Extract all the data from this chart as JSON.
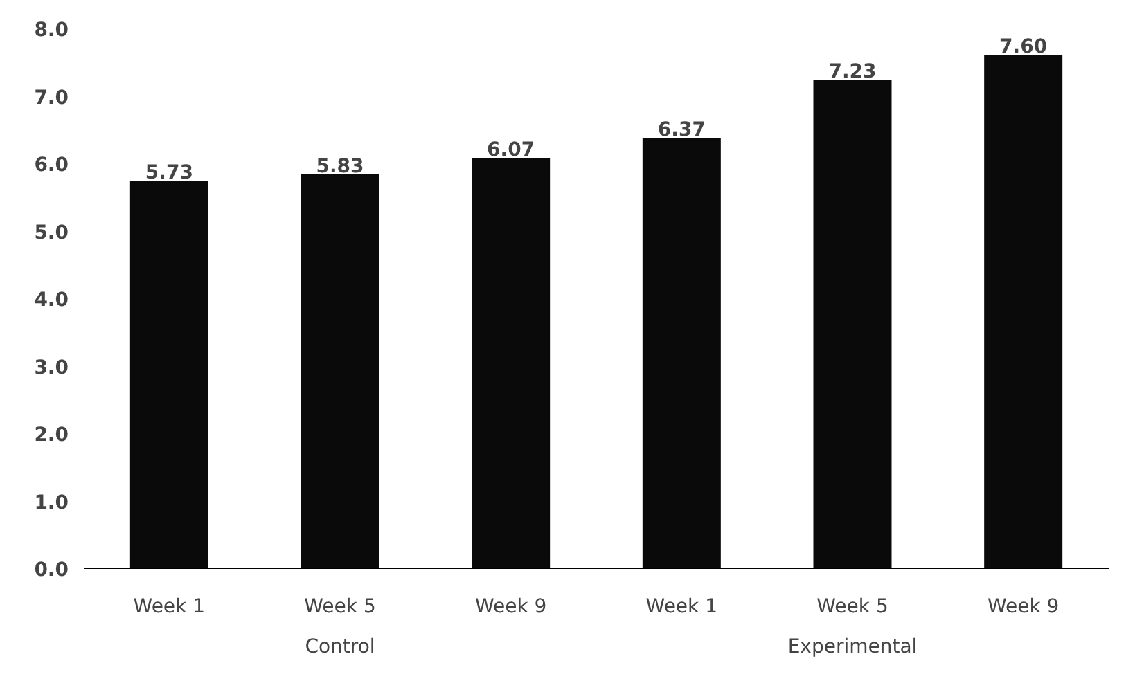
{
  "chart_data": {
    "type": "bar",
    "categories": [
      "Week 1",
      "Week 5",
      "Week 9",
      "Week 1",
      "Week 5",
      "Week 9"
    ],
    "values": [
      5.73,
      5.83,
      6.07,
      6.37,
      7.23,
      7.6
    ],
    "value_labels": [
      "5.73",
      "5.83",
      "6.07",
      "6.37",
      "7.23",
      "7.60"
    ],
    "color": "#0a0a0a",
    "ylim": [
      0,
      8
    ],
    "yticks": [
      {
        "value": 0,
        "label": "0.0"
      },
      {
        "value": 1,
        "label": "1.0"
      },
      {
        "value": 2,
        "label": "2.0"
      },
      {
        "value": 3,
        "label": "3.0"
      },
      {
        "value": 4,
        "label": "4.0"
      },
      {
        "value": 5,
        "label": "5.0"
      },
      {
        "value": 6,
        "label": "6.0"
      },
      {
        "value": 7,
        "label": "7.0"
      },
      {
        "value": 8,
        "label": "8.0"
      }
    ],
    "annotations": [
      "Control",
      "Experimental"
    ]
  }
}
